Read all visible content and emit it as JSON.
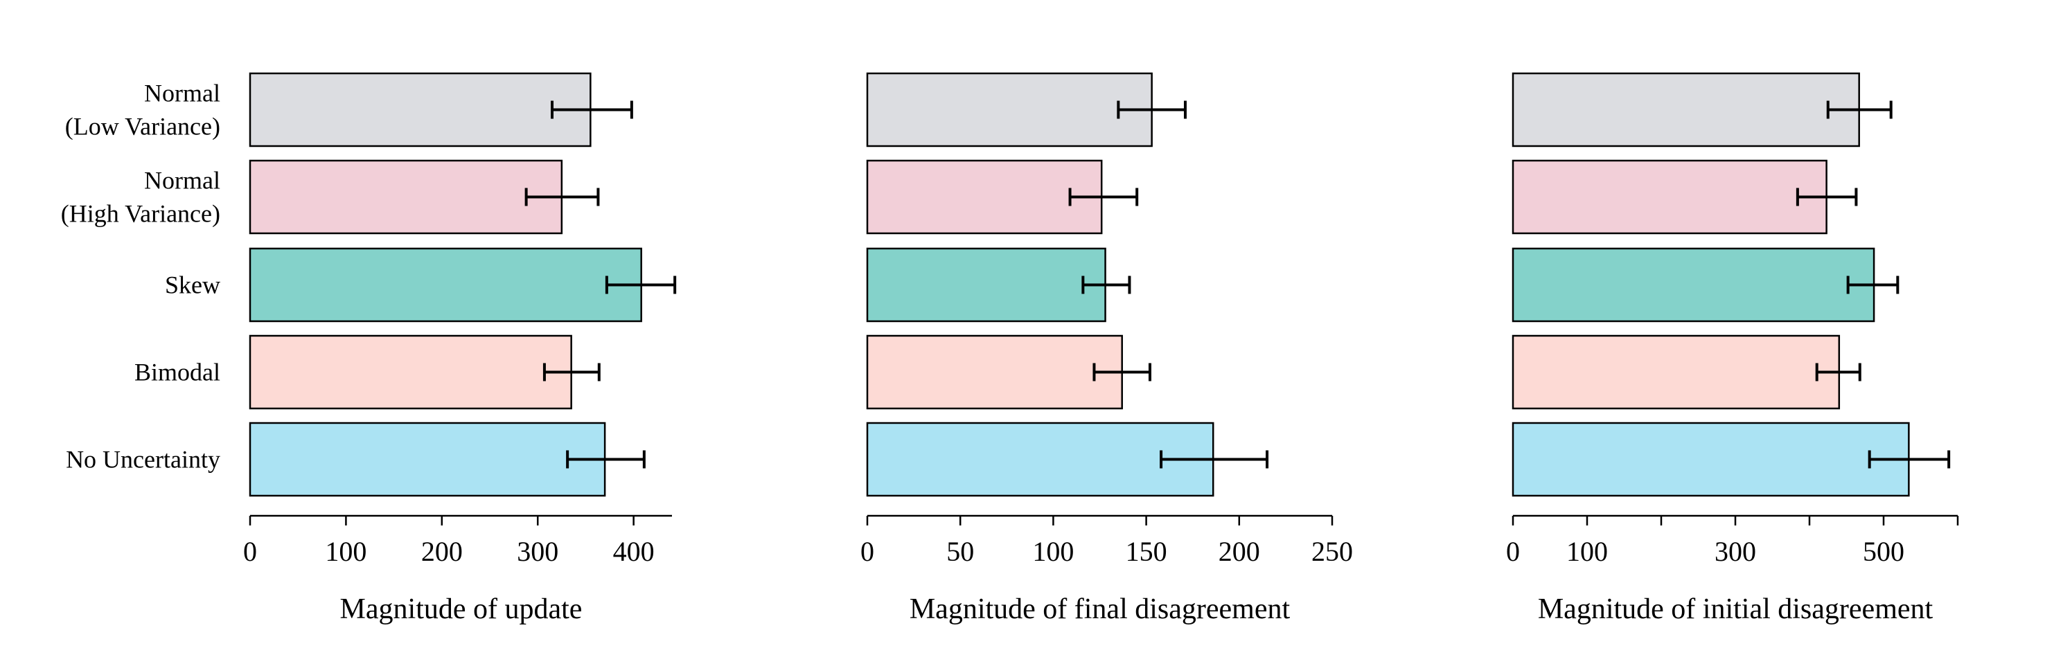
{
  "chart_data": [
    {
      "type": "bar",
      "orientation": "horizontal",
      "categories": [
        "Normal\n(Low Variance)",
        "Normal\n(High Variance)",
        "Skew",
        "Bimodal",
        "No Uncertainty"
      ],
      "values": [
        355,
        325,
        408,
        335,
        370
      ],
      "error": [
        [
          315,
          398
        ],
        [
          288,
          363
        ],
        [
          372,
          443
        ],
        [
          307,
          364
        ],
        [
          331,
          411
        ]
      ],
      "colors": [
        "#dcdde1",
        "#f2cfd8",
        "#84d2ca",
        "#fddad5",
        "#abe3f3"
      ],
      "xlabel": "Magnitude of update",
      "xlim": [
        0,
        440
      ],
      "xticks": [
        0,
        100,
        200,
        300,
        400
      ],
      "xtick_labels": [
        "0",
        "100",
        "200",
        "300",
        "400"
      ]
    },
    {
      "type": "bar",
      "orientation": "horizontal",
      "categories": [
        "Normal\n(Low Variance)",
        "Normal\n(High Variance)",
        "Skew",
        "Bimodal",
        "No Uncertainty"
      ],
      "values": [
        153,
        126,
        128,
        137,
        186
      ],
      "error": [
        [
          135,
          171
        ],
        [
          109,
          145
        ],
        [
          116,
          141
        ],
        [
          122,
          152
        ],
        [
          158,
          215
        ]
      ],
      "colors": [
        "#dcdde1",
        "#f2cfd8",
        "#84d2ca",
        "#fddad5",
        "#abe3f3"
      ],
      "xlabel": "Magnitude of final disagreement",
      "xlim": [
        0,
        250
      ],
      "xticks": [
        0,
        50,
        100,
        150,
        200,
        250
      ],
      "xtick_labels": [
        "0",
        "50",
        "100",
        "150",
        "200",
        "250"
      ]
    },
    {
      "type": "bar",
      "orientation": "horizontal",
      "categories": [
        "Normal\n(Low Variance)",
        "Normal\n(High Variance)",
        "Skew",
        "Bimodal",
        "No Uncertainty"
      ],
      "values": [
        467,
        423,
        487,
        440,
        534
      ],
      "error": [
        [
          425,
          510
        ],
        [
          384,
          463
        ],
        [
          452,
          519
        ],
        [
          410,
          468
        ],
        [
          481,
          588
        ]
      ],
      "colors": [
        "#dcdde1",
        "#f2cfd8",
        "#84d2ca",
        "#fddad5",
        "#abe3f3"
      ],
      "xlabel": "Magnitude of initial disagreement",
      "xlim": [
        0,
        600
      ],
      "xticks": [
        0,
        100,
        200,
        300,
        400,
        500,
        600
      ],
      "xtick_labels": [
        "0",
        "100",
        "",
        "300",
        "",
        "500",
        ""
      ]
    }
  ]
}
